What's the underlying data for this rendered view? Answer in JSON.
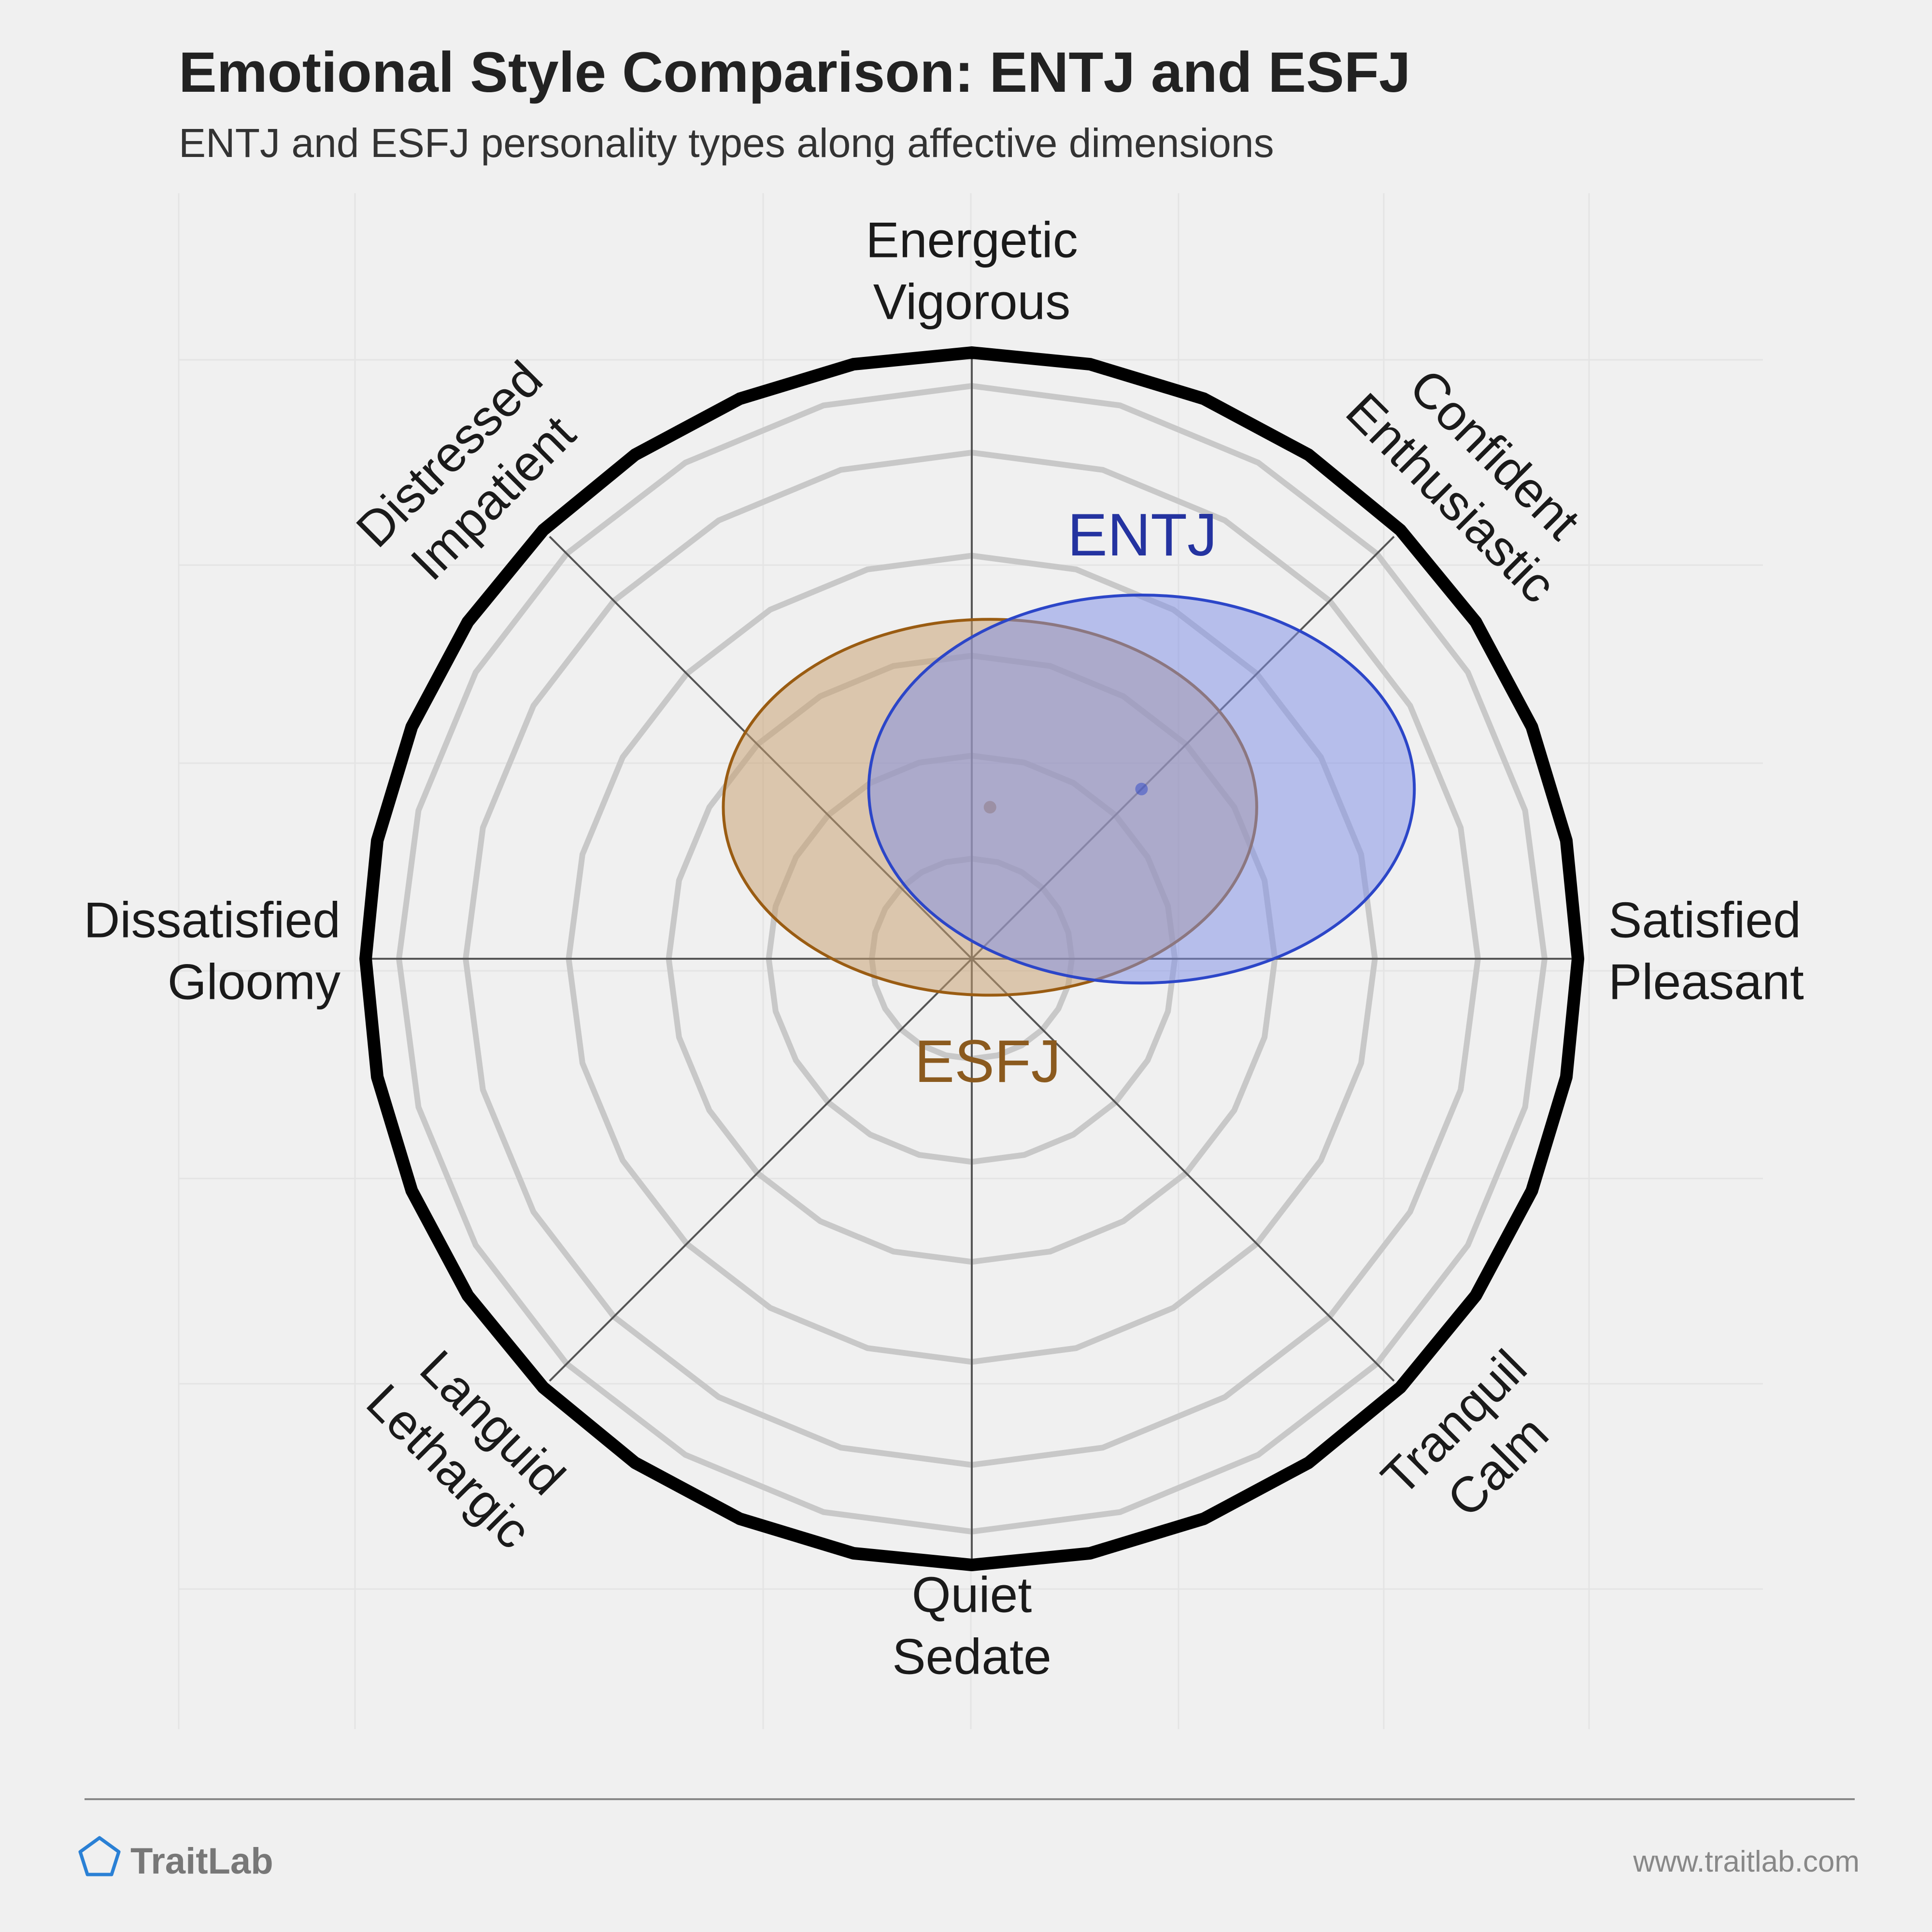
{
  "header": {
    "title": "Emotional Style Comparison: ENTJ and ESFJ",
    "subtitle": "ENTJ and ESFJ personality types along affective dimensions"
  },
  "footer": {
    "brand": "TraitLab",
    "url": "www.traitlab.com",
    "brand_icon": "pentagon-icon",
    "brand_color": "#2a80d5"
  },
  "chart_data": {
    "type": "radar-ellipse",
    "grid": true,
    "rings": 6,
    "axes": [
      {
        "key": "n",
        "lines": [
          "Energetic",
          "Vigorous"
        ]
      },
      {
        "key": "ne",
        "lines": [
          "Confident",
          "Enthusiastic"
        ]
      },
      {
        "key": "e",
        "lines": [
          "Satisfied",
          "Pleasant"
        ]
      },
      {
        "key": "se",
        "lines": [
          "Tranquil",
          "Calm"
        ]
      },
      {
        "key": "s",
        "lines": [
          "Quiet",
          "Sedate"
        ]
      },
      {
        "key": "sw",
        "lines": [
          "Languid",
          "Lethargic"
        ]
      },
      {
        "key": "w",
        "lines": [
          "Dissatisfied",
          "Gloomy"
        ]
      },
      {
        "key": "nw",
        "lines": [
          "Distressed",
          "Impatient"
        ]
      }
    ],
    "series": [
      {
        "name": "ESFJ",
        "color": "#8b5a1e",
        "stroke": "#9a5c12",
        "fill": "#c8a070",
        "center": [
          0.03,
          0.25
        ],
        "radius": [
          0.44,
          0.31
        ]
      },
      {
        "name": "ENTJ",
        "color": "#2433a0",
        "stroke": "#2c46c8",
        "fill": "#8090e6",
        "center": [
          0.28,
          0.28
        ],
        "radius": [
          0.45,
          0.32
        ]
      }
    ]
  }
}
